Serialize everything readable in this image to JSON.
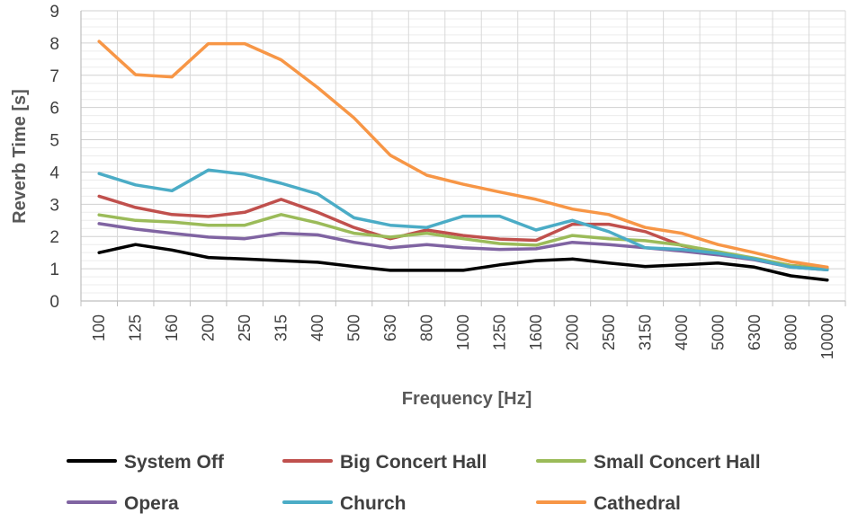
{
  "chart_data": {
    "type": "line",
    "title": "",
    "xlabel": "Frequency [Hz]",
    "ylabel": "Reverb Time [s]",
    "categories": [
      "100",
      "125",
      "160",
      "200",
      "250",
      "315",
      "400",
      "500",
      "630",
      "800",
      "1000",
      "1250",
      "1600",
      "2000",
      "2500",
      "3150",
      "4000",
      "5000",
      "6300",
      "8000",
      "10000"
    ],
    "yticks": [
      "0",
      "1",
      "2",
      "3",
      "4",
      "5",
      "6",
      "7",
      "8",
      "9"
    ],
    "ylim": [
      0,
      9
    ],
    "grid": true,
    "legend_position": "bottom",
    "series": [
      {
        "name": "System Off",
        "color": "#000000",
        "values": [
          1.5,
          1.75,
          1.58,
          1.35,
          1.3,
          1.25,
          1.2,
          1.07,
          0.95,
          0.95,
          0.95,
          1.12,
          1.25,
          1.3,
          1.18,
          1.07,
          1.12,
          1.18,
          1.05,
          0.78,
          0.65
        ]
      },
      {
        "name": "Big Concert Hall",
        "color": "#c0504d",
        "values": [
          3.25,
          2.9,
          2.68,
          2.62,
          2.75,
          3.15,
          2.75,
          2.28,
          1.93,
          2.2,
          2.03,
          1.92,
          1.88,
          2.38,
          2.38,
          2.15,
          1.72,
          1.5,
          1.3,
          1.1,
          1.02
        ]
      },
      {
        "name": "Small Concert Hall",
        "color": "#9bbb59",
        "values": [
          2.67,
          2.5,
          2.45,
          2.35,
          2.35,
          2.68,
          2.42,
          2.1,
          1.98,
          2.1,
          1.93,
          1.78,
          1.73,
          2.03,
          1.93,
          1.87,
          1.73,
          1.53,
          1.33,
          1.1,
          1.0
        ]
      },
      {
        "name": "Opera",
        "color": "#8064a2",
        "values": [
          2.4,
          2.23,
          2.1,
          1.98,
          1.93,
          2.1,
          2.05,
          1.82,
          1.65,
          1.75,
          1.65,
          1.6,
          1.62,
          1.82,
          1.75,
          1.65,
          1.55,
          1.43,
          1.28,
          1.05,
          0.97
        ]
      },
      {
        "name": "Church",
        "color": "#4bacc6",
        "values": [
          3.95,
          3.6,
          3.42,
          4.06,
          3.93,
          3.65,
          3.32,
          2.58,
          2.35,
          2.28,
          2.63,
          2.63,
          2.2,
          2.5,
          2.15,
          1.65,
          1.6,
          1.48,
          1.3,
          1.05,
          0.97
        ]
      },
      {
        "name": "Cathedral",
        "color": "#f79646",
        "values": [
          8.05,
          7.02,
          6.95,
          7.98,
          7.98,
          7.48,
          6.62,
          5.68,
          4.52,
          3.9,
          3.62,
          3.38,
          3.15,
          2.85,
          2.68,
          2.28,
          2.1,
          1.75,
          1.5,
          1.22,
          1.05
        ]
      }
    ]
  }
}
